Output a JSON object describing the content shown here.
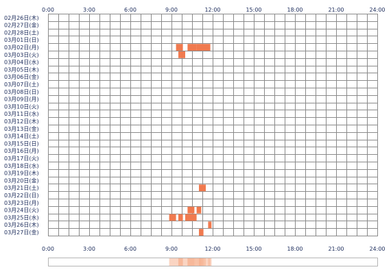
{
  "chart_data": {
    "type": "heatmap",
    "title": "",
    "xlabel": "",
    "ylabel": "",
    "xlim": [
      0,
      24
    ],
    "x_ticks": [
      "0:00",
      "3:00",
      "6:00",
      "9:00",
      "12:00",
      "15:00",
      "18:00",
      "21:00",
      "24:00"
    ],
    "slot_minutes": 45,
    "rows": [
      "02月26日(木)",
      "02月27日(金)",
      "02月28日(土)",
      "03月01日(日)",
      "03月02日(月)",
      "03月03日(火)",
      "03月04日(水)",
      "03月05日(木)",
      "03月06日(金)",
      "03月07日(土)",
      "03月08日(日)",
      "03月09日(月)",
      "03月10日(火)",
      "03月11日(水)",
      "03月12日(木)",
      "03月13日(金)",
      "03月14日(土)",
      "03月15日(日)",
      "03月16日(月)",
      "03月17日(火)",
      "03月18日(水)",
      "03月19日(木)",
      "03月20日(金)",
      "03月21日(土)",
      "03月22日(日)",
      "03月23日(月)",
      "03月24日(火)",
      "03月25日(水)",
      "03月26日(木)",
      "03月27日(金)"
    ],
    "activity": [
      {
        "row": 4,
        "start": 9.33,
        "end": 9.83
      },
      {
        "row": 4,
        "start": 10.17,
        "end": 10.83
      },
      {
        "row": 4,
        "start": 10.83,
        "end": 11.83
      },
      {
        "row": 5,
        "start": 9.5,
        "end": 10.0
      },
      {
        "row": 23,
        "start": 11.0,
        "end": 11.5
      },
      {
        "row": 26,
        "start": 10.17,
        "end": 10.67
      },
      {
        "row": 26,
        "start": 10.83,
        "end": 11.17
      },
      {
        "row": 27,
        "start": 8.83,
        "end": 9.33
      },
      {
        "row": 27,
        "start": 9.5,
        "end": 9.83
      },
      {
        "row": 27,
        "start": 10.0,
        "end": 10.83
      },
      {
        "row": 28,
        "start": 11.67,
        "end": 11.92
      },
      {
        "row": 29,
        "start": 11.0,
        "end": 11.33
      }
    ],
    "colors": {
      "activity": "#f07a4f",
      "summary": "#f5b090",
      "grid": "#8a8a8a",
      "label": "#1a2a5a"
    }
  }
}
